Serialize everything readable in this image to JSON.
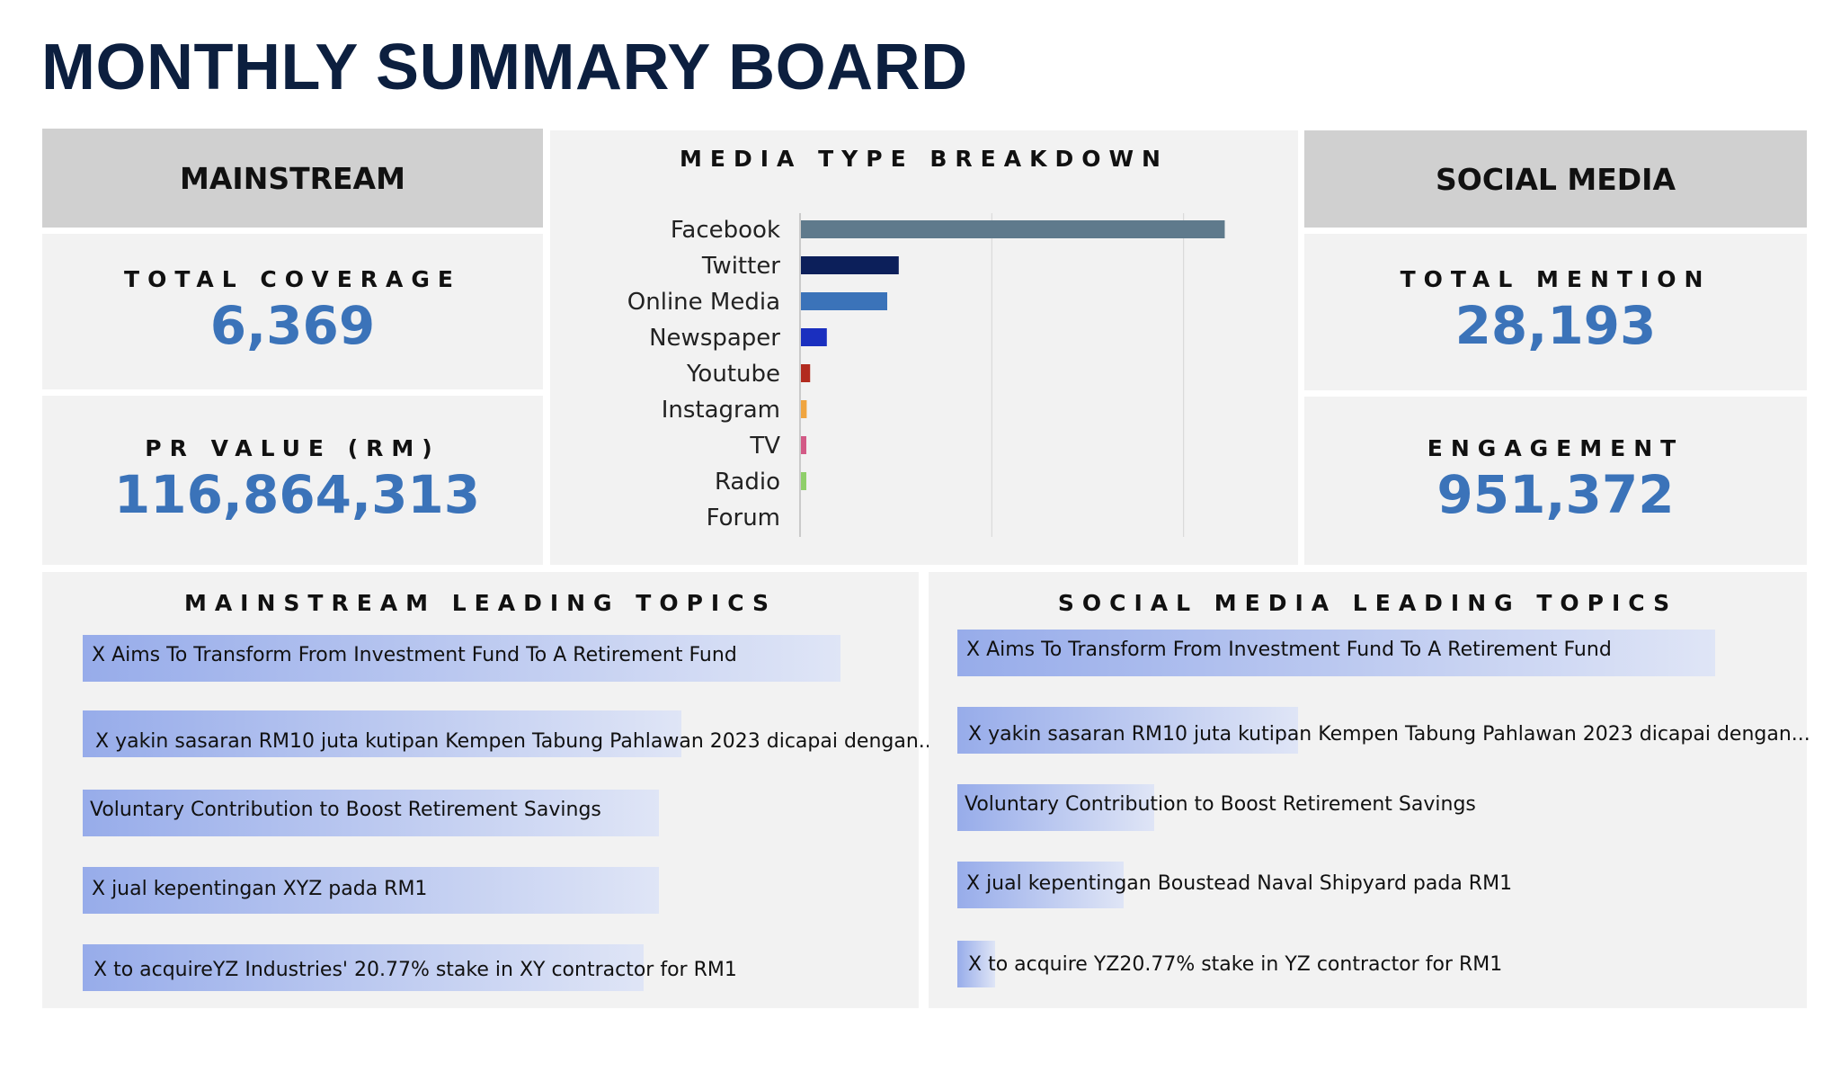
{
  "title": "MONTHLY SUMMARY BOARD",
  "mainstream": {
    "header": "MAINSTREAM",
    "total_coverage_label": "TOTAL COVERAGE",
    "total_coverage_value": "6,369",
    "pr_value_label": "PR VALUE (RM)",
    "pr_value_value": "116,864,313"
  },
  "social": {
    "header": "SOCIAL MEDIA",
    "total_mention_label": "TOTAL MENTION",
    "total_mention_value": "28,193",
    "engagement_label": "ENGAGEMENT",
    "engagement_value": "951,372"
  },
  "media_breakdown": {
    "title": "MEDIA TYPE BREAKDOWN"
  },
  "chart_data": {
    "type": "bar",
    "orientation": "horizontal",
    "title": "MEDIA TYPE BREAKDOWN",
    "categories": [
      "Facebook",
      "Twitter",
      "Online Media",
      "Newspaper",
      "Youtube",
      "Instagram",
      "TV",
      "Radio",
      "Forum"
    ],
    "values": [
      22100,
      5100,
      4500,
      1350,
      480,
      300,
      200,
      150,
      0
    ],
    "colors": [
      "#5f7a8c",
      "#0c1f5a",
      "#3b73b9",
      "#1a2fbf",
      "#b22b1f",
      "#f0a540",
      "#d35a86",
      "#8fcf6a",
      "#cccccc"
    ],
    "xlim": [
      0,
      30000
    ],
    "x_gridlines": [
      0,
      10000,
      20000
    ],
    "grid": true,
    "legend": "none"
  },
  "mainstream_topics": {
    "title": "MAINSTREAM LEADING TOPICS",
    "items": [
      {
        "label": "X Aims To Transform From Investment Fund To A Retirement Fund",
        "share": 1.0
      },
      {
        "label": "X yakin sasaran RM10 juta kutipan Kempen Tabung Pahlawan 2023 dicapai dengan...",
        "share": 0.79
      },
      {
        "label": "Voluntary Contribution to Boost Retirement Savings",
        "share": 0.76
      },
      {
        "label": "X jual kepentingan XYZ pada RM1",
        "share": 0.76
      },
      {
        "label": "X to acquireYZ Industries' 20.77% stake in XY contractor for RM1",
        "share": 0.74
      }
    ]
  },
  "social_topics": {
    "title": "SOCIAL MEDIA LEADING TOPICS",
    "items": [
      {
        "label": "X Aims To Transform From Investment Fund To A Retirement Fund",
        "share": 1.0
      },
      {
        "label": "X yakin sasaran RM10 juta kutipan Kempen Tabung Pahlawan 2023 dicapai dengan...",
        "share": 0.45
      },
      {
        "label": "Voluntary Contribution to Boost Retirement Savings",
        "share": 0.26
      },
      {
        "label": "X jual kepentingan Boustead Naval Shipyard pada RM1",
        "share": 0.22
      },
      {
        "label": "X to acquire YZ20.77% stake in YZ contractor for RM1",
        "share": 0.05
      }
    ]
  }
}
